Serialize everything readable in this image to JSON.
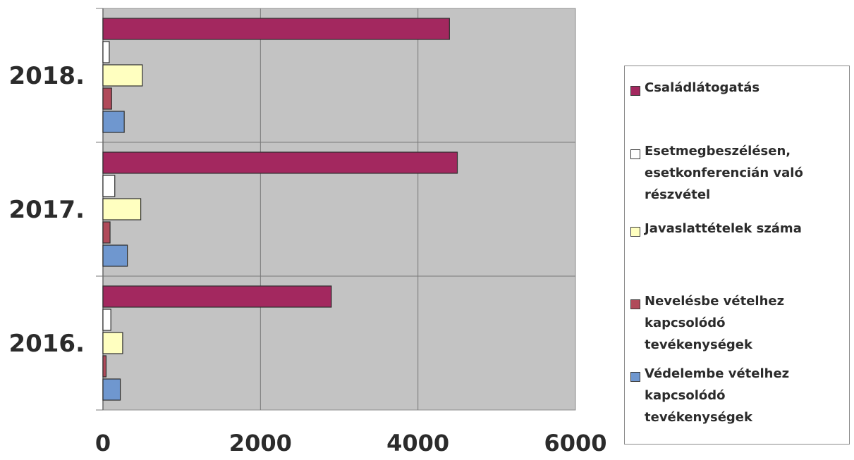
{
  "chart_data": {
    "type": "bar",
    "orientation": "horizontal",
    "categories": [
      "2016.",
      "2017.",
      "2018."
    ],
    "series": [
      {
        "name": "Családlátogatás",
        "color": "#a3285f",
        "values": [
          2900,
          4500,
          4400
        ]
      },
      {
        "name": "Esetmegbeszélésen, esetkonferencián való részvétel",
        "color": "#ffffff",
        "values": [
          100,
          150,
          80
        ]
      },
      {
        "name": "Javaslattételek száma",
        "color": "#ffffc0",
        "values": [
          250,
          480,
          500
        ]
      },
      {
        "name": "Nevelésbe vételhez kapcsolódó tevékenységek",
        "color": "#b04a5a",
        "values": [
          40,
          90,
          110
        ]
      },
      {
        "name": "Védelembe vételhez kapcsolódó tevékenységek",
        "color": "#6f97cf",
        "values": [
          220,
          310,
          270
        ]
      }
    ],
    "x_ticks": [
      "0",
      "2000",
      "4000",
      "6000"
    ],
    "xlim": [
      0,
      6000
    ],
    "grid": true,
    "plot_background": "#c3c3c3",
    "legend_position": "right"
  },
  "legend": {
    "items": [
      {
        "lines": [
          "Családlátogatás"
        ]
      },
      {
        "lines": [
          "Esetmegbeszélésen,",
          "esetkonferencián való",
          "részvétel"
        ]
      },
      {
        "lines": [
          "Javaslattételek száma"
        ]
      },
      {
        "lines": [
          "Nevelésbe vételhez",
          "kapcsolódó",
          "tevékenységek"
        ]
      },
      {
        "lines": [
          "Védelembe vételhez",
          "kapcsolódó",
          "tevékenységek"
        ]
      }
    ]
  }
}
